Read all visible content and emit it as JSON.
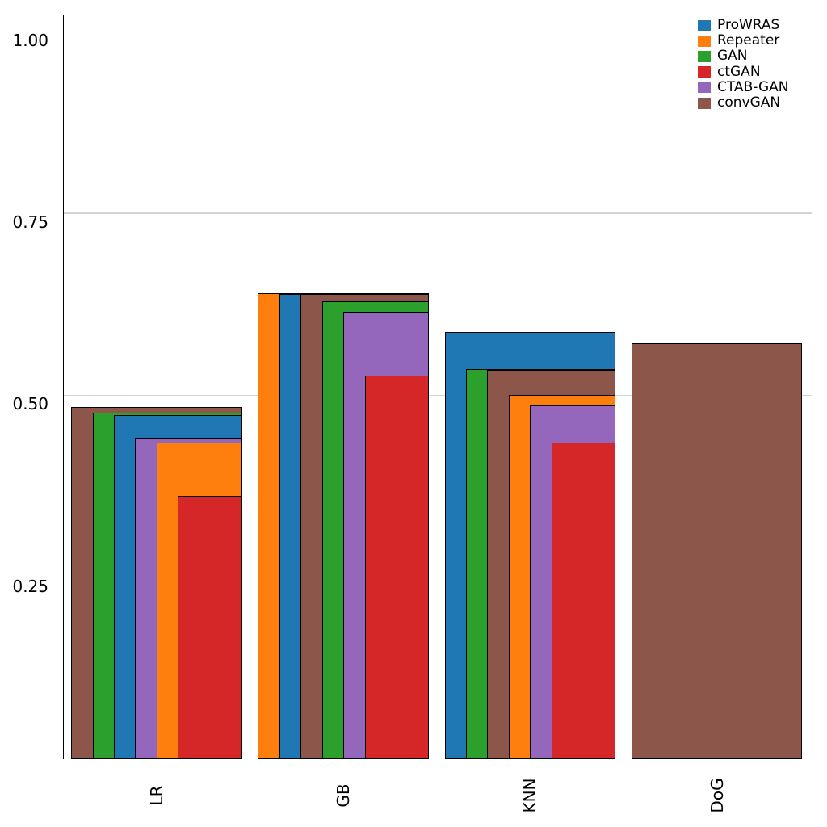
{
  "chart_data": {
    "type": "bar",
    "variant": "layered-overlay-sorted-desc",
    "title": "",
    "xlabel": "",
    "ylabel": "",
    "categories": [
      "LR",
      "GB",
      "KNN",
      "DoG"
    ],
    "series": [
      {
        "name": "ProWRAS",
        "color": "#1f77b4",
        "values": [
          0.472,
          0.639,
          0.587,
          null
        ]
      },
      {
        "name": "Repeater",
        "color": "#ff7f0e",
        "values": [
          0.435,
          0.64,
          0.5,
          null
        ]
      },
      {
        "name": "GAN",
        "color": "#2ca02c",
        "values": [
          0.476,
          0.629,
          0.536,
          null
        ]
      },
      {
        "name": "ctGAN",
        "color": "#d62728",
        "values": [
          0.362,
          0.527,
          0.435,
          null
        ]
      },
      {
        "name": "CTAB-GAN",
        "color": "#9467bd",
        "values": [
          0.441,
          0.615,
          0.486,
          null
        ]
      },
      {
        "name": "convGAN",
        "color": "#8c564b",
        "values": [
          0.484,
          0.639,
          0.535,
          0.571
        ]
      }
    ],
    "yticks": [
      0.25,
      0.5,
      0.75,
      1.0
    ],
    "ytick_labels": [
      "0.25",
      "0.50",
      "0.75",
      "1.00"
    ],
    "ylim": [
      0,
      1.023
    ],
    "grid": true,
    "grid_color": "#d4d4d4",
    "legend_position": "upper right",
    "bar_edge_color": "#000000"
  }
}
